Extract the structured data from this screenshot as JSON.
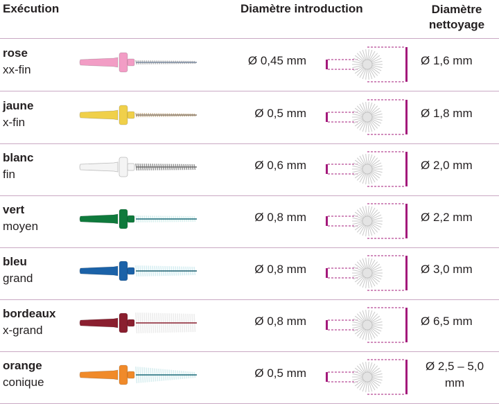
{
  "header": {
    "execution": "Exécution",
    "diametre_introduction": "Diamètre introduction",
    "diametre_nettoyage_line1": "Diamètre",
    "diametre_nettoyage_line2": "nettoyage"
  },
  "accent_color": "#a3187a",
  "rows": [
    {
      "name": "rose",
      "size": "xx-fin",
      "intro": "Ø 0,45 mm",
      "clean": "Ø 1,6 mm",
      "handle_color": "#f29dc5",
      "bristle_color": "#b8b8b8",
      "wire_color": "#7a8aa0",
      "bristle_type": "thin",
      "handle_icon": "brush-pink-icon"
    },
    {
      "name": "jaune",
      "size": "x-fin",
      "intro": "Ø 0,5 mm",
      "clean": "Ø 1,8 mm",
      "handle_color": "#f0d04a",
      "bristle_color": "#c9b596",
      "wire_color": "#8a7a68",
      "bristle_type": "thin",
      "handle_icon": "brush-yellow-icon"
    },
    {
      "name": "blanc",
      "size": "fin",
      "intro": "Ø 0,6 mm",
      "clean": "Ø 2,0 mm",
      "handle_color": "#f4f4f4",
      "bristle_color": "#9a9a9a",
      "wire_color": "#707070",
      "bristle_type": "medium",
      "handle_icon": "brush-white-icon"
    },
    {
      "name": "vert",
      "size": "moyen",
      "intro": "Ø 0,8 mm",
      "clean": "Ø 2,2 mm",
      "handle_color": "#0f7a3c",
      "bristle_color": "#d8f0ee",
      "wire_color": "#1a6a78",
      "bristle_type": "medium",
      "handle_icon": "brush-green-icon"
    },
    {
      "name": "bleu",
      "size": "grand",
      "intro": "Ø 0,8 mm",
      "clean": "Ø 3,0 mm",
      "handle_color": "#1b62a8",
      "bristle_color": "#d6eef2",
      "wire_color": "#1c5e6e",
      "bristle_type": "thick",
      "handle_icon": "brush-blue-icon"
    },
    {
      "name": "bordeaux",
      "size": "x-grand",
      "intro": "Ø 0,8 mm",
      "clean": "Ø 6,5 mm",
      "handle_color": "#8a1f2f",
      "bristle_color": "#ececec",
      "wire_color": "#8a1f2f",
      "bristle_type": "xthick",
      "handle_icon": "brush-bordeaux-icon"
    },
    {
      "name": "orange",
      "size": "conique",
      "intro": "Ø 0,5 mm",
      "clean": "Ø 2,5 – 5,0 mm",
      "handle_color": "#f08a2a",
      "bristle_color": "#d8eef0",
      "wire_color": "#1a6a78",
      "bristle_type": "conical",
      "handle_icon": "brush-orange-icon"
    }
  ]
}
